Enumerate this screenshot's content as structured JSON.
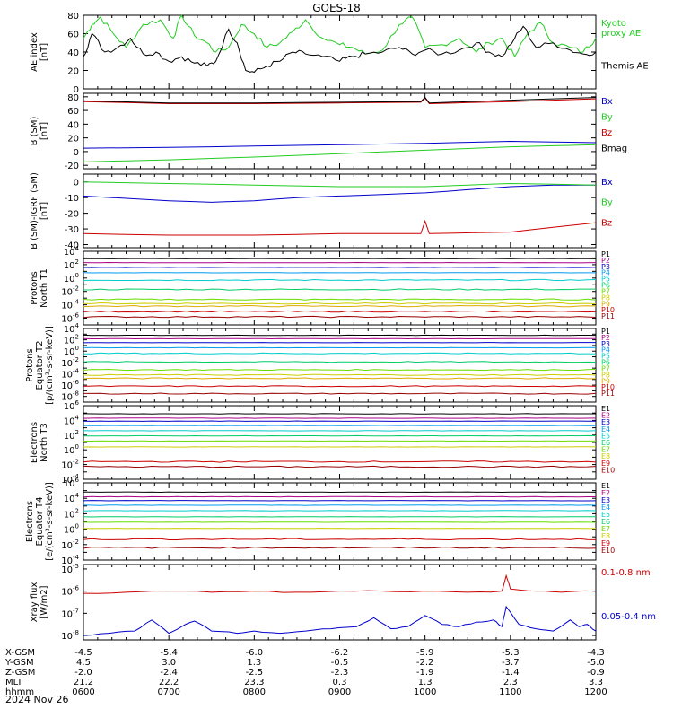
{
  "figure": {
    "title": "GOES-18",
    "date": "2024 Nov 26"
  },
  "colors": {
    "black": "#000000",
    "green": "#22cc22",
    "blue": "#0000cc",
    "red": "#cc0000",
    "darkred": "#880000",
    "axis": "#000000",
    "channel_palette": [
      "#000000",
      "#aa0088",
      "#0000cc",
      "#0099ee",
      "#00cccc",
      "#00cc66",
      "#66dd00",
      "#cccc00",
      "#ddaa00",
      "#cc0000",
      "#990000"
    ]
  },
  "chart_data": [
    {
      "id": "ae",
      "type": "line",
      "ylabel": "AE index\n[nT]",
      "ylim": [
        0,
        80
      ],
      "yticks": [
        "0",
        "20",
        "40",
        "60",
        "80"
      ],
      "log": false,
      "series": [
        {
          "name": "Kyoto\nproxy AE",
          "color": "#22cc22",
          "x": [
            6.0,
            6.1,
            6.2,
            6.35,
            6.5,
            6.7,
            6.9,
            7.05,
            7.15,
            7.3,
            7.45,
            7.55,
            7.7,
            7.85,
            8.0,
            8.15,
            8.3,
            8.45,
            8.6,
            8.8,
            9.0,
            9.15,
            9.3,
            9.5,
            9.7,
            9.85,
            10.0,
            10.2,
            10.4,
            10.6,
            10.75,
            10.9,
            11.05,
            11.2,
            11.35,
            11.5,
            11.7,
            11.85,
            12.0
          ],
          "y": [
            55,
            70,
            78,
            60,
            45,
            70,
            75,
            55,
            80,
            58,
            50,
            40,
            45,
            70,
            60,
            45,
            50,
            62,
            75,
            55,
            48,
            45,
            38,
            42,
            70,
            78,
            45,
            48,
            55,
            40,
            50,
            55,
            35,
            60,
            72,
            50,
            45,
            40,
            55
          ]
        },
        {
          "name": "Themis AE",
          "color": "#000000",
          "x": [
            6.0,
            6.1,
            6.25,
            6.4,
            6.55,
            6.7,
            6.85,
            7.0,
            7.15,
            7.3,
            7.45,
            7.55,
            7.7,
            7.8,
            7.9,
            8.0,
            8.15,
            8.3,
            8.45,
            8.6,
            8.8,
            9.0,
            9.15,
            9.3,
            9.5,
            9.7,
            9.85,
            10.0,
            10.2,
            10.4,
            10.6,
            10.75,
            10.9,
            11.05,
            11.15,
            11.3,
            11.5,
            11.7,
            11.85,
            12.0
          ],
          "y": [
            35,
            60,
            40,
            45,
            55,
            38,
            40,
            30,
            35,
            28,
            25,
            30,
            65,
            50,
            20,
            18,
            25,
            30,
            40,
            38,
            35,
            30,
            35,
            38,
            40,
            45,
            38,
            42,
            38,
            42,
            50,
            40,
            35,
            55,
            68,
            45,
            50,
            42,
            38,
            40
          ]
        }
      ],
      "legend": [
        "Kyoto\nproxy AE",
        "Themis AE"
      ]
    },
    {
      "id": "bsm",
      "type": "line",
      "ylabel": "B (SM)\n[nT]",
      "ylim": [
        -25,
        85
      ],
      "yticks": [
        "-20",
        "0",
        "20",
        "40",
        "60",
        "80"
      ],
      "log": false,
      "series": [
        {
          "name": "Bx",
          "color": "#0000cc",
          "x": [
            6,
            7,
            8,
            9,
            10,
            11,
            12
          ],
          "y": [
            5,
            6,
            8,
            10,
            12,
            15,
            13
          ]
        },
        {
          "name": "By",
          "color": "#22cc22",
          "x": [
            6,
            7,
            8,
            9,
            10,
            11,
            12
          ],
          "y": [
            -15,
            -12,
            -8,
            -3,
            2,
            7,
            10
          ]
        },
        {
          "name": "Bz",
          "color": "#cc0000",
          "x": [
            6,
            7,
            8,
            9,
            9.95,
            10.0,
            10.05,
            11,
            12
          ],
          "y": [
            73,
            70,
            70,
            71,
            72,
            78,
            70,
            73,
            77
          ]
        },
        {
          "name": "Bmag",
          "color": "#000000",
          "x": [
            6,
            7,
            8,
            9,
            9.95,
            10.0,
            10.05,
            11,
            12
          ],
          "y": [
            74,
            71,
            71,
            72,
            73,
            79,
            71,
            75,
            79
          ]
        }
      ],
      "legend": [
        "Bx",
        "By",
        "Bz",
        "Bmag"
      ]
    },
    {
      "id": "bsmigrf",
      "type": "line",
      "ylabel": "B (SM)-IGRF (SM)\n[nT]",
      "ylim": [
        -42,
        5
      ],
      "yticks": [
        "-40",
        "-30",
        "-20",
        "-10",
        "0"
      ],
      "log": false,
      "series": [
        {
          "name": "Bx",
          "color": "#0000cc",
          "x": [
            6,
            6.5,
            7,
            7.5,
            8,
            8.5,
            9,
            9.5,
            10,
            10.5,
            11,
            11.5,
            12
          ],
          "y": [
            -9,
            -10.5,
            -12,
            -13,
            -12,
            -10,
            -9,
            -8,
            -7,
            -5,
            -3,
            -2,
            -2
          ]
        },
        {
          "name": "By",
          "color": "#22cc22",
          "x": [
            6,
            7,
            8,
            9,
            10,
            10.5,
            11,
            12
          ],
          "y": [
            0,
            -1,
            -2,
            -3,
            -3,
            -2,
            -1,
            -2
          ]
        },
        {
          "name": "Bz",
          "color": "#cc0000",
          "x": [
            6,
            7,
            8,
            9,
            9.95,
            10.0,
            10.05,
            11,
            11.5,
            12
          ],
          "y": [
            -33,
            -34,
            -34,
            -33,
            -33,
            -25,
            -33,
            -32,
            -29,
            -26
          ]
        }
      ],
      "legend": [
        "Bx",
        "By",
        "Bz"
      ]
    },
    {
      "id": "protons_t1",
      "type": "line",
      "ylabel": "Protons\nNorth T1",
      "ylim": [
        -7,
        4
      ],
      "yticks_exp": [
        -6,
        -4,
        -2,
        0,
        2,
        4
      ],
      "log": true,
      "series": [
        {
          "name": "P1",
          "color": "#000000",
          "level": 2.9
        },
        {
          "name": "P2",
          "color": "#aa0088",
          "level": 2.3
        },
        {
          "name": "P3",
          "color": "#0000cc",
          "level": 1.6
        },
        {
          "name": "P4",
          "color": "#0099ee",
          "level": 0.8
        },
        {
          "name": "P5",
          "color": "#00cccc",
          "level": -0.3
        },
        {
          "name": "P6",
          "color": "#00cc66",
          "level": -1.7
        },
        {
          "name": "P7",
          "color": "#66dd00",
          "level": -3.2
        },
        {
          "name": "P8",
          "color": "#cccc00",
          "level": -3.8
        },
        {
          "name": "P9",
          "color": "#ddaa00",
          "level": -4.2
        },
        {
          "name": "P10",
          "color": "#cc0000",
          "level": -5.0
        },
        {
          "name": "P11",
          "color": "#990000",
          "level": -5.8
        }
      ],
      "legend": [
        "P1",
        "P2",
        "P3",
        "P4",
        "P5",
        "P6",
        "P7",
        "P8",
        "P9",
        "P10",
        "P11"
      ]
    },
    {
      "id": "protons_t2",
      "type": "line",
      "ylabel": "Protons\nEquator T2\n[p/(cm²-s-sr-keV)]",
      "ylim": [
        -9,
        4
      ],
      "yticks_exp": [
        -8,
        -6,
        -4,
        -2,
        0,
        2,
        4
      ],
      "log": true,
      "series": [
        {
          "name": "P1",
          "color": "#000000",
          "level": 2.8
        },
        {
          "name": "P2",
          "color": "#aa0088",
          "level": 2.2
        },
        {
          "name": "P3",
          "color": "#0000cc",
          "level": 1.5
        },
        {
          "name": "P4",
          "color": "#0099ee",
          "level": 0.6
        },
        {
          "name": "P5",
          "color": "#00cccc",
          "level": -0.4
        },
        {
          "name": "P6",
          "color": "#00cc66",
          "level": -1.9
        },
        {
          "name": "P7",
          "color": "#66dd00",
          "level": -3.3
        },
        {
          "name": "P8",
          "color": "#cccc00",
          "level": -4.2
        },
        {
          "name": "P9",
          "color": "#ddaa00",
          "level": -4.8
        },
        {
          "name": "P10",
          "color": "#cc0000",
          "level": -6.2
        },
        {
          "name": "P11",
          "color": "#990000",
          "level": -7.5
        }
      ],
      "legend": [
        "P1",
        "P2",
        "P3",
        "P4",
        "P5",
        "P6",
        "P7",
        "P8",
        "P9",
        "P10",
        "P11"
      ]
    },
    {
      "id": "electrons_t3",
      "type": "line",
      "ylabel": "Electrons\nNorth T3",
      "ylim": [
        -4,
        6
      ],
      "yticks_exp": [
        -4,
        -2,
        0,
        2,
        4,
        6
      ],
      "log": true,
      "series": [
        {
          "name": "E1",
          "color": "#000000",
          "level": 4.9
        },
        {
          "name": "E2",
          "color": "#aa0088",
          "level": 4.3
        },
        {
          "name": "E3",
          "color": "#0000cc",
          "level": 3.9
        },
        {
          "name": "E4",
          "color": "#0099ee",
          "level": 3.3
        },
        {
          "name": "E5",
          "color": "#00cccc",
          "level": 2.6
        },
        {
          "name": "E6",
          "color": "#00cc66",
          "level": 1.9
        },
        {
          "name": "E7",
          "color": "#66dd00",
          "level": 1.2
        },
        {
          "name": "E8",
          "color": "#cccc00",
          "level": 0.4
        },
        {
          "name": "E9",
          "color": "#cc0000",
          "level": -1.6
        },
        {
          "name": "E10",
          "color": "#990000",
          "level": -2.3
        }
      ],
      "legend": [
        "E1",
        "E2",
        "E3",
        "E4",
        "E5",
        "E6",
        "E7",
        "E8",
        "E9",
        "E10"
      ]
    },
    {
      "id": "electrons_t4",
      "type": "line",
      "ylabel": "Electrons\nEquator T4\n[e/(cm²-s-sr-keV)]",
      "ylim": [
        -4,
        6
      ],
      "yticks_exp": [
        -4,
        -2,
        0,
        2,
        4,
        6
      ],
      "log": true,
      "series": [
        {
          "name": "E1",
          "color": "#000000",
          "level": 4.8
        },
        {
          "name": "E2",
          "color": "#aa0088",
          "level": 4.2
        },
        {
          "name": "E3",
          "color": "#0000cc",
          "level": 3.7
        },
        {
          "name": "E4",
          "color": "#0099ee",
          "level": 3.1
        },
        {
          "name": "E5",
          "color": "#00cccc",
          "level": 2.4
        },
        {
          "name": "E6",
          "color": "#00cc66",
          "level": 1.6
        },
        {
          "name": "E7",
          "color": "#66dd00",
          "level": 0.9
        },
        {
          "name": "E8",
          "color": "#cccc00",
          "level": 0.1
        },
        {
          "name": "E9",
          "color": "#cc0000",
          "level": -1.3
        },
        {
          "name": "E10",
          "color": "#990000",
          "level": -2.4
        }
      ],
      "legend": [
        "E1",
        "E2",
        "E3",
        "E4",
        "E5",
        "E6",
        "E7",
        "E8",
        "E9",
        "E10"
      ]
    },
    {
      "id": "xray",
      "type": "line",
      "ylabel": "Xray flux\n[W/m2]",
      "ylim": [
        -8.2,
        -4.8
      ],
      "yticks_exp": [
        -8,
        -7,
        -6,
        -5
      ],
      "log": true,
      "series": [
        {
          "name": "0.1-0.8 nm",
          "color": "#cc0000",
          "x": [
            6,
            6.5,
            7,
            7.5,
            8,
            8.5,
            9,
            9.5,
            10,
            10.5,
            10.9,
            10.95,
            11.0,
            11.3,
            11.6,
            12
          ],
          "y": [
            -6.1,
            -6.05,
            -6.0,
            -6.05,
            -6.0,
            -6.05,
            -6.0,
            -6.0,
            -6.0,
            -6.05,
            -6.0,
            -5.3,
            -5.9,
            -6.0,
            -6.05,
            -6.0
          ]
        },
        {
          "name": "0.05-0.4 nm",
          "color": "#0000cc",
          "x": [
            6,
            6.3,
            6.6,
            6.8,
            7.0,
            7.15,
            7.3,
            7.5,
            7.8,
            8.0,
            8.3,
            8.6,
            8.9,
            9.2,
            9.4,
            9.6,
            9.8,
            10.0,
            10.2,
            10.4,
            10.6,
            10.8,
            10.9,
            10.95,
            11.1,
            11.3,
            11.5,
            11.7,
            11.8,
            11.9,
            12.0
          ],
          "y": [
            -8.0,
            -7.9,
            -7.8,
            -7.3,
            -7.9,
            -7.6,
            -7.35,
            -7.8,
            -7.9,
            -7.8,
            -7.9,
            -7.8,
            -7.7,
            -7.6,
            -7.2,
            -7.7,
            -7.6,
            -7.1,
            -7.5,
            -7.6,
            -7.4,
            -7.3,
            -7.6,
            -6.7,
            -7.5,
            -7.7,
            -7.8,
            -7.3,
            -7.6,
            -7.5,
            -7.8
          ]
        }
      ],
      "legend": [
        "0.1-0.8 nm",
        "0.05-0.4 nm"
      ]
    }
  ],
  "x_axis": {
    "range": [
      6,
      12
    ],
    "ticks": [
      {
        "hhmm": "0600",
        "xgsm": "-4.5",
        "ygsm": "4.5",
        "zgsm": "-2.0",
        "mlt": "21.2"
      },
      {
        "hhmm": "0700",
        "xgsm": "-5.4",
        "ygsm": "3.0",
        "zgsm": "-2.4",
        "mlt": "22.2"
      },
      {
        "hhmm": "0800",
        "xgsm": "-6.0",
        "ygsm": "1.3",
        "zgsm": "-2.5",
        "mlt": "23.3"
      },
      {
        "hhmm": "0900",
        "xgsm": "-6.2",
        "ygsm": "-0.5",
        "zgsm": "-2.3",
        "mlt": "0.3"
      },
      {
        "hhmm": "1000",
        "xgsm": "-5.9",
        "ygsm": "-2.2",
        "zgsm": "-1.9",
        "mlt": "1.3"
      },
      {
        "hhmm": "1100",
        "xgsm": "-5.3",
        "ygsm": "-3.7",
        "zgsm": "-1.4",
        "mlt": "2.3"
      },
      {
        "hhmm": "1200",
        "xgsm": "-4.3",
        "ygsm": "-5.0",
        "zgsm": "-0.9",
        "mlt": "3.3"
      }
    ],
    "row_labels": [
      "X-GSM",
      "Y-GSM",
      "Z-GSM",
      "MLT",
      "hhmm"
    ]
  }
}
